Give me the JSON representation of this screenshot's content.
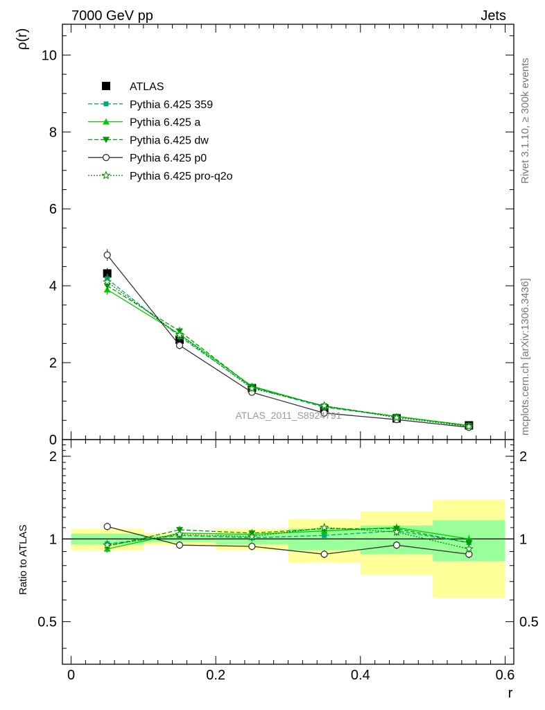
{
  "header": {
    "left_title": "7000 GeV pp",
    "right_title": "Jets",
    "side_rivet": "Rivet 3.1.10, ≥ 300k events",
    "side_mcplots": "mcplots.cern.ch [arXiv:1306.3436]",
    "watermark": "ATLAS_2011_S8924791"
  },
  "colors": {
    "data": "#000000",
    "p359": "#00a878",
    "pa": "#00cc00",
    "pdw": "#009900",
    "pp0": "#333333",
    "pq2o": "#008800",
    "band_yellow": "#ffff99",
    "band_green": "#99ff99"
  },
  "chart_data": [
    {
      "type": "line",
      "panel": "main",
      "ylabel": "ρ(r)",
      "xlim": [
        -0.012,
        0.612
      ],
      "ylim": [
        0,
        10.8
      ],
      "yticks": [
        0,
        2,
        4,
        6,
        8,
        10
      ],
      "ytick_labels": [
        "0",
        "2",
        "4",
        "6",
        "8",
        "10"
      ],
      "x": [
        0.05,
        0.15,
        0.25,
        0.35,
        0.45,
        0.55
      ],
      "series": [
        {
          "name": "ATLAS",
          "values": [
            4.32,
            2.6,
            1.34,
            0.8,
            0.55,
            0.37
          ],
          "style": "data"
        },
        {
          "name": "Pythia 6.425 359",
          "values": [
            4.18,
            2.68,
            1.36,
            0.84,
            0.6,
            0.36
          ],
          "style": "p359"
        },
        {
          "name": "Pythia 6.425 a",
          "values": [
            3.9,
            2.74,
            1.39,
            0.86,
            0.6,
            0.37
          ],
          "style": "pa"
        },
        {
          "name": "Pythia 6.425 dw",
          "values": [
            4.0,
            2.82,
            1.37,
            0.87,
            0.6,
            0.36
          ],
          "style": "pdw"
        },
        {
          "name": "Pythia 6.425 p0",
          "values": [
            4.8,
            2.45,
            1.23,
            0.69,
            0.52,
            0.32
          ],
          "style": "pp0"
        },
        {
          "name": "Pythia 6.425 pro-q2o",
          "values": [
            4.1,
            2.72,
            1.33,
            0.88,
            0.57,
            0.34
          ],
          "style": "pq2o"
        }
      ]
    },
    {
      "type": "line",
      "panel": "ratio",
      "ylabel": "Ratio to ATLAS",
      "xlabel": "r",
      "xlim": [
        -0.012,
        0.612
      ],
      "ylim": [
        0.35,
        2.3
      ],
      "yticks": [
        0.5,
        1,
        2
      ],
      "ytick_labels": [
        "0.5",
        "1",
        "2"
      ],
      "xticks": [
        0,
        0.2,
        0.4,
        0.6
      ],
      "xtick_labels": [
        "0",
        "0.2",
        "0.4",
        "0.6"
      ],
      "x": [
        0.05,
        0.15,
        0.25,
        0.35,
        0.45,
        0.55
      ],
      "bands": [
        {
          "x0": 0.0,
          "x1": 0.1,
          "yellow": [
            0.91,
            1.09
          ],
          "green": [
            0.955,
            1.045
          ]
        },
        {
          "x0": 0.1,
          "x1": 0.2,
          "yellow": [
            0.95,
            1.05
          ],
          "green": [
            0.975,
            1.025
          ]
        },
        {
          "x0": 0.2,
          "x1": 0.3,
          "yellow": [
            0.91,
            1.09
          ],
          "green": [
            0.955,
            1.045
          ]
        },
        {
          "x0": 0.3,
          "x1": 0.4,
          "yellow": [
            0.82,
            1.18
          ],
          "green": [
            0.91,
            1.09
          ]
        },
        {
          "x0": 0.4,
          "x1": 0.5,
          "yellow": [
            0.74,
            1.26
          ],
          "green": [
            0.88,
            1.12
          ]
        },
        {
          "x0": 0.5,
          "x1": 0.6,
          "yellow": [
            0.61,
            1.39
          ],
          "green": [
            0.83,
            1.17
          ]
        }
      ],
      "series": [
        {
          "name": "Pythia 6.425 359",
          "values": [
            0.96,
            1.03,
            1.01,
            1.03,
            1.07,
            0.97
          ],
          "style": "p359"
        },
        {
          "name": "Pythia 6.425 a",
          "values": [
            0.92,
            1.05,
            1.04,
            1.07,
            1.1,
            1.0
          ],
          "style": "pa"
        },
        {
          "name": "Pythia 6.425 dw",
          "values": [
            0.94,
            1.08,
            1.05,
            1.09,
            1.09,
            0.97
          ],
          "style": "pdw"
        },
        {
          "name": "Pythia 6.425 p0",
          "values": [
            1.11,
            0.95,
            0.94,
            0.88,
            0.95,
            0.88
          ],
          "style": "pp0"
        },
        {
          "name": "Pythia 6.425 pro-q2o",
          "values": [
            0.95,
            1.04,
            1.02,
            1.1,
            1.06,
            0.92
          ],
          "style": "pq2o"
        }
      ]
    }
  ]
}
